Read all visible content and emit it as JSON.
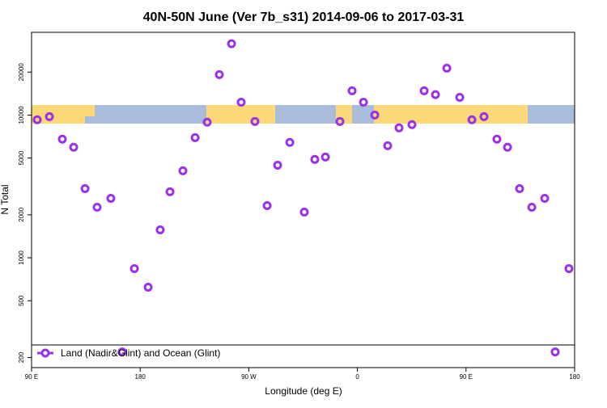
{
  "chart_data": {
    "type": "scatter",
    "title": "40N-50N June (Ver 7b_s31)   2014-09-06 to 2017-03-31",
    "xlabel": "Longitude (deg E)",
    "ylabel": "N Total",
    "xlim": [
      90,
      540
    ],
    "ylim": [
      170,
      38000
    ],
    "ylog": true,
    "legend": "bottom",
    "xticks": [
      {
        "value": 90,
        "label": "90 E"
      },
      180,
      {
        "value": 270,
        "label": "90 W"
      },
      {
        "value": 360,
        "label": "0"
      },
      {
        "value": 450,
        "label": "90 E"
      },
      {
        "value": 540,
        "label": "180"
      }
    ],
    "yticks": [
      200,
      500,
      1000,
      2000,
      5000,
      10000,
      20000
    ],
    "series": [
      {
        "name": "Land (Nadir&Glint) and Ocean (Glint)",
        "color": "#9b30e6",
        "x": [
          94.7,
          104.8,
          115.5,
          124.9,
          134.3,
          144.3,
          155.7,
          165.1,
          175.2,
          186.6,
          196.6,
          204.7,
          215.4,
          225.5,
          235.5,
          245.6,
          255.7,
          263.7,
          275.1,
          285.2,
          293.9,
          304,
          316,
          324.7,
          333.5,
          345.5,
          355.6,
          365,
          374.4,
          385.1,
          394.5,
          405.2,
          415.3,
          424.7,
          434.1,
          444.8,
          454.9,
          464.9,
          475.6,
          484.4,
          494.4,
          504.5,
          515.2,
          523.9,
          535.3
        ],
        "values": [
          9270,
          9750,
          6780,
          5950,
          3050,
          2260,
          2610,
          219,
          840,
          622,
          1570,
          2900,
          4070,
          6950,
          8910,
          19200,
          31600,
          12300,
          9020,
          2320,
          4450,
          6430,
          2090,
          4890,
          5080,
          9020,
          14800,
          12300,
          10000,
          6100,
          8130,
          8570,
          14800,
          13900,
          21300,
          13300,
          9270,
          9750,
          6780,
          5950,
          3050,
          2260,
          2610,
          219,
          840
        ]
      }
    ]
  }
}
